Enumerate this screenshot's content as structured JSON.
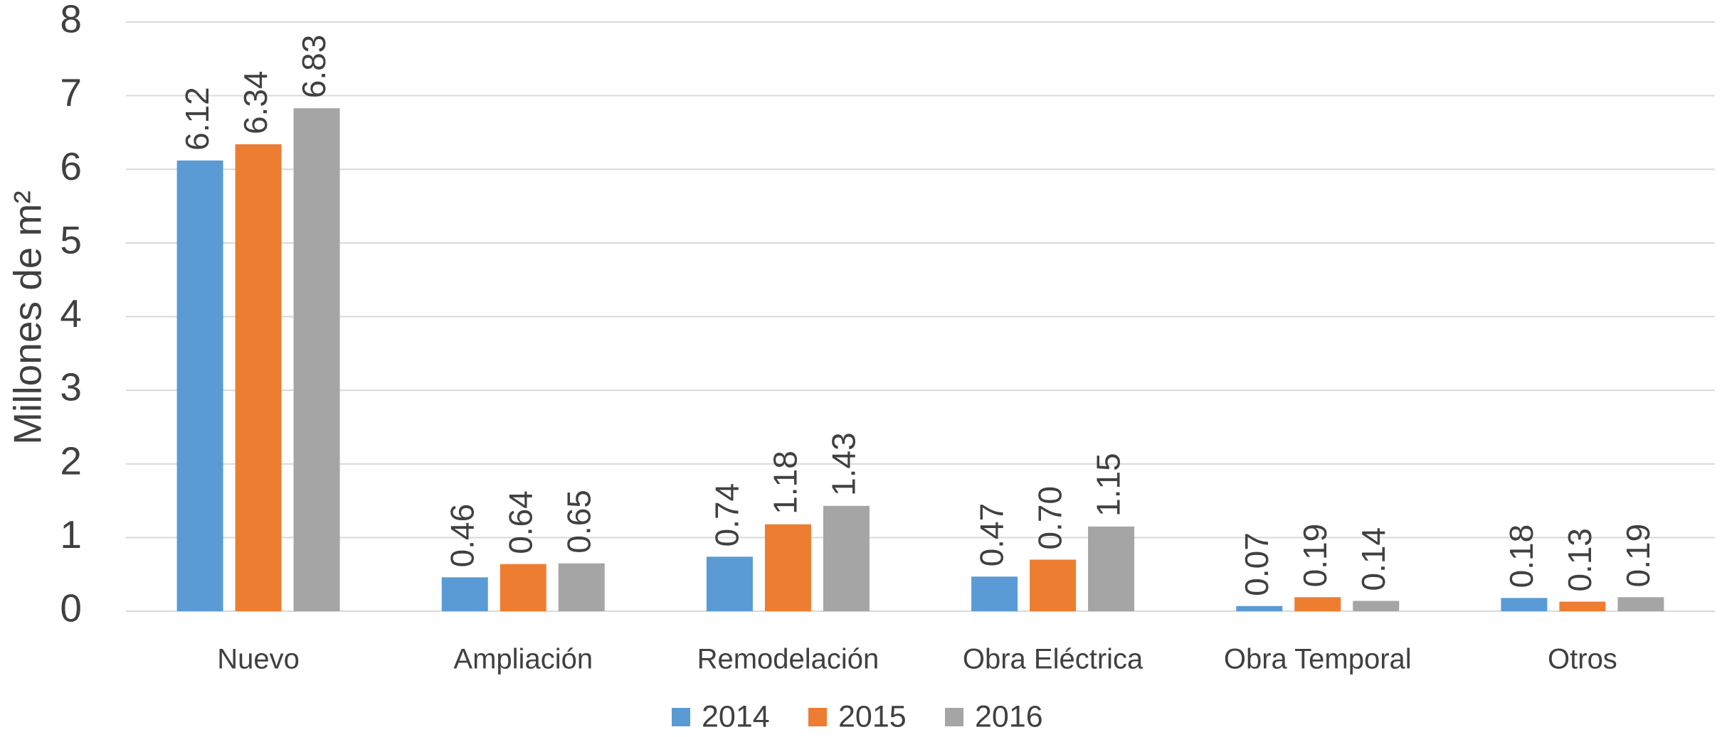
{
  "chart_data": {
    "type": "bar",
    "ylabel": "Millones de m²",
    "categories": [
      "Nuevo",
      "Ampliación",
      "Remodelación",
      "Obra Eléctrica",
      "Obra Temporal",
      "Otros"
    ],
    "series": [
      {
        "name": "2014",
        "color": "#5b9bd5",
        "values": [
          6.12,
          0.46,
          0.74,
          0.47,
          0.07,
          0.18
        ],
        "value_labels": [
          "6.12",
          "0.46",
          "0.74",
          "0.47",
          "0.07",
          "0.18"
        ]
      },
      {
        "name": "2015",
        "color": "#ed7d31",
        "values": [
          6.34,
          0.64,
          1.18,
          0.7,
          0.19,
          0.13
        ],
        "value_labels": [
          "6.34",
          "0.64",
          "1.18",
          "0.70",
          "0.19",
          "0.13"
        ]
      },
      {
        "name": "2016",
        "color": "#a5a5a5",
        "values": [
          6.83,
          0.65,
          1.43,
          1.15,
          0.14,
          0.19
        ],
        "value_labels": [
          "6.83",
          "0.65",
          "1.43",
          "1.15",
          "0.14",
          "0.19"
        ]
      }
    ],
    "ylim": [
      0,
      8
    ],
    "yticks": [
      0,
      1,
      2,
      3,
      4,
      5,
      6,
      7,
      8
    ],
    "grid": true,
    "legend": "bottom"
  }
}
